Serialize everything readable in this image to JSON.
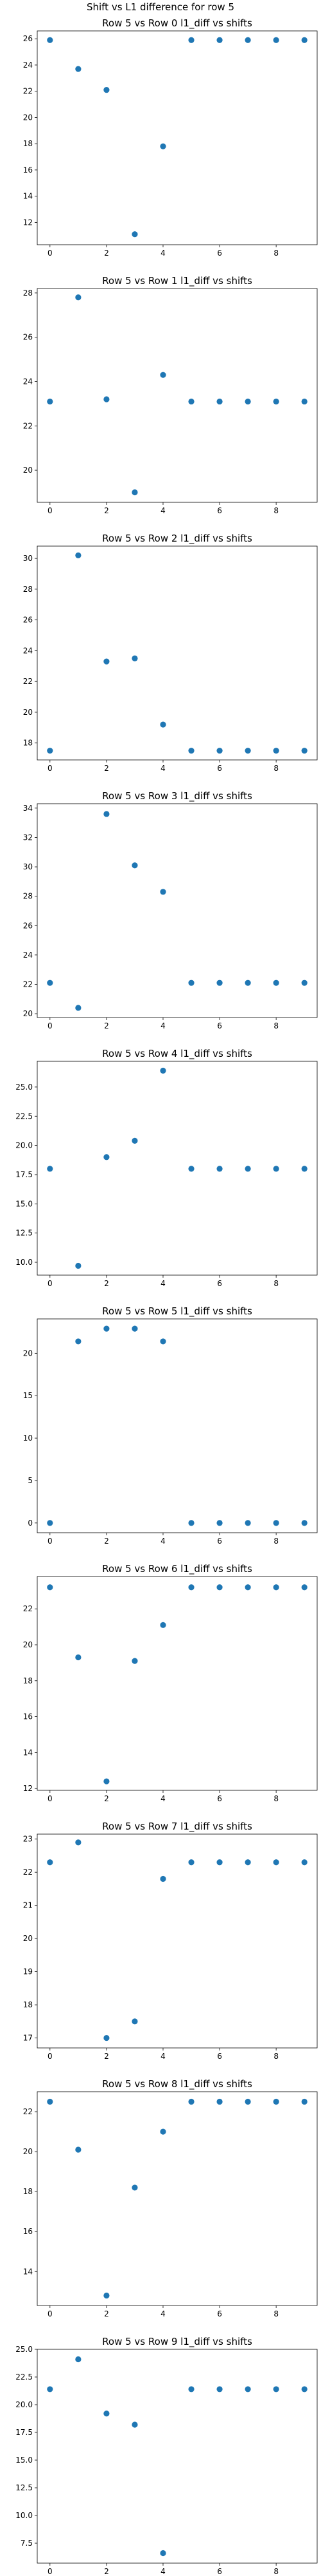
{
  "figure_title": "Shift vs L1 difference for row 5",
  "colors": {
    "marker": "#1f77b4",
    "axis": "#000000",
    "background": "#ffffff"
  },
  "chart_data": [
    {
      "type": "scatter",
      "title": "Row 5 vs Row 0 l1_diff vs shifts",
      "x": [
        0,
        1,
        2,
        3,
        4,
        5,
        6,
        7,
        8,
        9
      ],
      "y": [
        25.9,
        23.7,
        22.1,
        11.1,
        17.8,
        25.9,
        25.9,
        25.9,
        25.9,
        25.9
      ],
      "xlim": [
        -0.45,
        9.45
      ],
      "ylim": [
        10.3,
        26.6
      ],
      "xticks": [
        0,
        2,
        4,
        6,
        8
      ],
      "yticks": [
        12,
        14,
        16,
        18,
        20,
        22,
        24,
        26
      ],
      "grid": false
    },
    {
      "type": "scatter",
      "title": "Row 5 vs Row 1 l1_diff vs shifts",
      "x": [
        0,
        1,
        2,
        3,
        4,
        5,
        6,
        7,
        8,
        9
      ],
      "y": [
        23.1,
        27.8,
        23.2,
        19.0,
        24.3,
        23.1,
        23.1,
        23.1,
        23.1,
        23.1
      ],
      "xlim": [
        -0.45,
        9.45
      ],
      "ylim": [
        18.55,
        28.2
      ],
      "xticks": [
        0,
        2,
        4,
        6,
        8
      ],
      "yticks": [
        20,
        22,
        24,
        26,
        28
      ],
      "grid": false
    },
    {
      "type": "scatter",
      "title": "Row 5 vs Row 2 l1_diff vs shifts",
      "x": [
        0,
        1,
        2,
        3,
        4,
        5,
        6,
        7,
        8,
        9
      ],
      "y": [
        17.5,
        30.2,
        23.3,
        23.5,
        19.2,
        17.5,
        17.5,
        17.5,
        17.5,
        17.5
      ],
      "xlim": [
        -0.45,
        9.45
      ],
      "ylim": [
        16.9,
        30.8
      ],
      "xticks": [
        0,
        2,
        4,
        6,
        8
      ],
      "yticks": [
        18,
        20,
        22,
        24,
        26,
        28,
        30
      ],
      "grid": false
    },
    {
      "type": "scatter",
      "title": "Row 5 vs Row 3 l1_diff vs shifts",
      "x": [
        0,
        1,
        2,
        3,
        4,
        5,
        6,
        7,
        8,
        9
      ],
      "y": [
        22.1,
        20.4,
        33.6,
        30.1,
        28.3,
        22.1,
        22.1,
        22.1,
        22.1,
        22.1
      ],
      "xlim": [
        -0.45,
        9.45
      ],
      "ylim": [
        19.74,
        34.3
      ],
      "xticks": [
        0,
        2,
        4,
        6,
        8
      ],
      "yticks": [
        20,
        22,
        24,
        26,
        28,
        30,
        32,
        34
      ],
      "grid": false
    },
    {
      "type": "scatter",
      "title": "Row 5 vs Row 4 l1_diff vs shifts",
      "x": [
        0,
        1,
        2,
        3,
        4,
        5,
        6,
        7,
        8,
        9
      ],
      "y": [
        18.0,
        9.7,
        19.0,
        20.4,
        26.4,
        18.0,
        18.0,
        18.0,
        18.0,
        18.0
      ],
      "xlim": [
        -0.45,
        9.45
      ],
      "ylim": [
        8.9,
        27.2
      ],
      "xticks": [
        0,
        2,
        4,
        6,
        8
      ],
      "yticks": [
        "10.0",
        "12.5",
        "15.0",
        "17.5",
        "20.0",
        "22.5",
        "25.0"
      ],
      "grid": false
    },
    {
      "type": "scatter",
      "title": "Row 5 vs Row 5 l1_diff vs shifts",
      "x": [
        0,
        1,
        2,
        3,
        4,
        5,
        6,
        7,
        8,
        9
      ],
      "y": [
        0.0,
        21.4,
        22.9,
        22.9,
        21.4,
        0.0,
        0.0,
        0.0,
        0.0,
        0.0
      ],
      "xlim": [
        -0.45,
        9.45
      ],
      "ylim": [
        -1.15,
        24.05
      ],
      "xticks": [
        0,
        2,
        4,
        6,
        8
      ],
      "yticks": [
        0,
        5,
        10,
        15,
        20
      ],
      "grid": false
    },
    {
      "type": "scatter",
      "title": "Row 5 vs Row 6 l1_diff vs shifts",
      "x": [
        0,
        1,
        2,
        3,
        4,
        5,
        6,
        7,
        8,
        9
      ],
      "y": [
        23.2,
        19.3,
        12.4,
        19.1,
        21.1,
        23.2,
        23.2,
        23.2,
        23.2,
        23.2
      ],
      "xlim": [
        -0.45,
        9.45
      ],
      "ylim": [
        11.9,
        23.8
      ],
      "xticks": [
        0,
        2,
        4,
        6,
        8
      ],
      "yticks": [
        12,
        14,
        16,
        18,
        20,
        22
      ],
      "grid": false
    },
    {
      "type": "scatter",
      "title": "Row 5 vs Row 7 l1_diff vs shifts",
      "x": [
        0,
        1,
        2,
        3,
        4,
        5,
        6,
        7,
        8,
        9
      ],
      "y": [
        22.3,
        22.9,
        17.0,
        17.5,
        21.8,
        22.3,
        22.3,
        22.3,
        22.3,
        22.3
      ],
      "xlim": [
        -0.45,
        9.45
      ],
      "ylim": [
        16.7,
        23.15
      ],
      "xticks": [
        0,
        2,
        4,
        6,
        8
      ],
      "yticks": [
        17,
        18,
        19,
        20,
        21,
        22,
        23
      ],
      "grid": false
    },
    {
      "type": "scatter",
      "title": "Row 5 vs Row 8 l1_diff vs shifts",
      "x": [
        0,
        1,
        2,
        3,
        4,
        5,
        6,
        7,
        8,
        9
      ],
      "y": [
        22.5,
        20.1,
        12.8,
        18.2,
        21.0,
        22.5,
        22.5,
        22.5,
        22.5,
        22.5
      ],
      "xlim": [
        -0.45,
        9.45
      ],
      "ylim": [
        12.3,
        23.0
      ],
      "xticks": [
        0,
        2,
        4,
        6,
        8
      ],
      "yticks": [
        14,
        16,
        18,
        20,
        22
      ],
      "grid": false
    },
    {
      "type": "scatter",
      "title": "Row 5 vs Row 9 l1_diff vs shifts",
      "x": [
        0,
        1,
        2,
        3,
        4,
        5,
        6,
        7,
        8,
        9
      ],
      "y": [
        21.4,
        24.1,
        19.2,
        18.2,
        6.6,
        21.4,
        21.4,
        21.4,
        21.4,
        21.4
      ],
      "xlim": [
        -0.45,
        9.45
      ],
      "ylim": [
        5.7,
        25.0
      ],
      "xticks": [
        0,
        2,
        4,
        6,
        8
      ],
      "yticks": [
        "7.5",
        "10.0",
        "12.5",
        "15.0",
        "17.5",
        "20.0",
        "22.5",
        "25.0"
      ],
      "grid": false
    }
  ]
}
